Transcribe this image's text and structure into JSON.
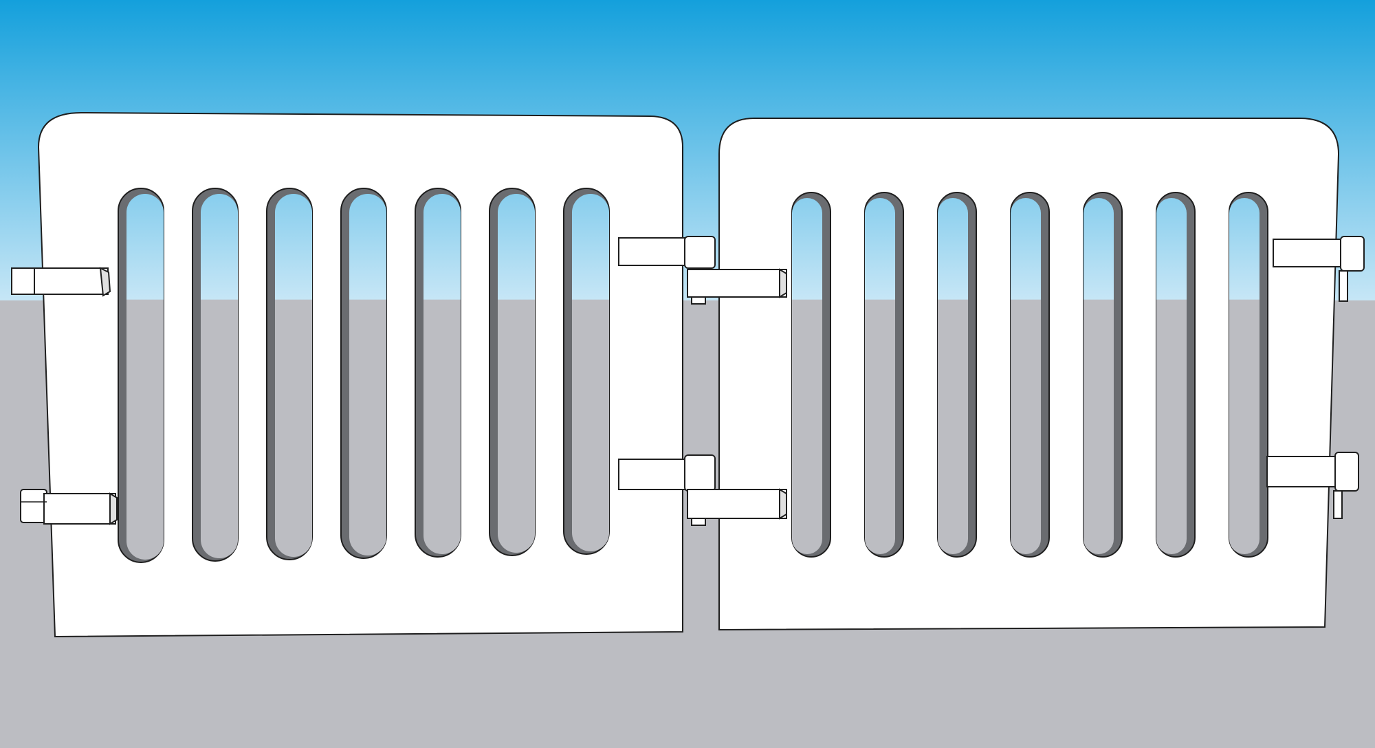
{
  "scene": {
    "colors": {
      "sky_top": "#14a0dc",
      "sky_bottom": "#c6e6f6",
      "ground": "#bcbdc2",
      "panel_fill": "#ffffff",
      "outline": "#1e1e1e",
      "slot_shadow": "#6a6c70",
      "hinge_fill": "#ffffff"
    },
    "panels": [
      {
        "name": "left-gate-panel",
        "slot_count": 7,
        "hinges": 2
      },
      {
        "name": "right-gate-panel",
        "slot_count": 7,
        "hinges": 2
      }
    ]
  }
}
